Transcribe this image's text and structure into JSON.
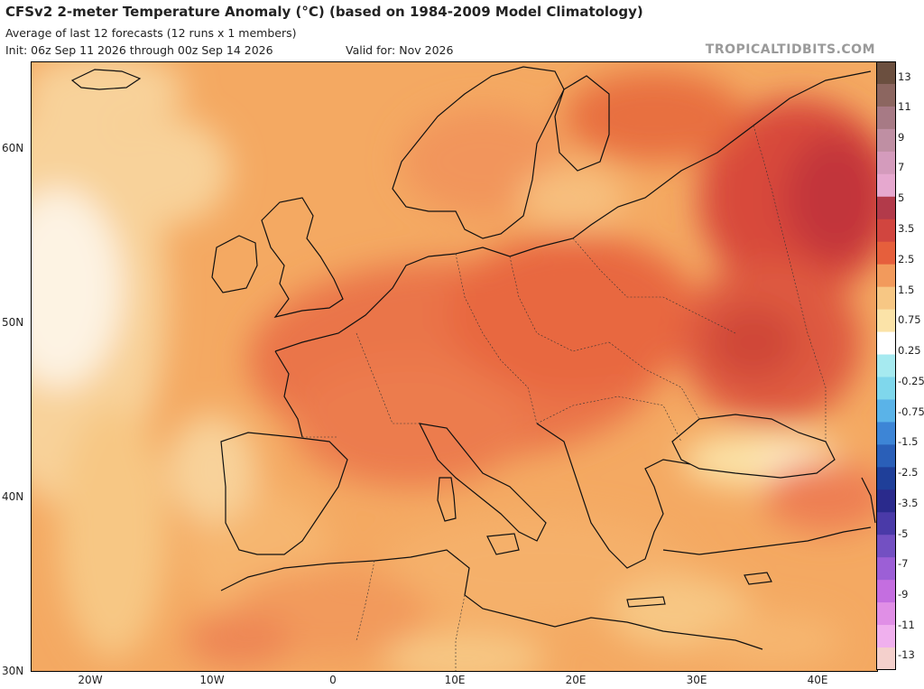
{
  "header": {
    "title": "CFSv2 2-meter Temperature Anomaly (°C) (based on 1984-2009 Model Climatology)",
    "subtitle": "Average of last 12 forecasts (12 runs x 1 members)",
    "init": "Init: 06z Sep 11 2026 through 00z Sep 14 2026",
    "valid": "Valid for: Nov 2026",
    "brand": "TROPICALTIDBITS.COM"
  },
  "map": {
    "lat_labels": [
      "60N",
      "50N",
      "40N",
      "30N"
    ],
    "lon_labels": [
      "20W",
      "10W",
      "0",
      "10E",
      "20E",
      "30E",
      "40E"
    ]
  },
  "colorbar": {
    "labels": [
      "13",
      "11",
      "9",
      "7",
      "5",
      "3.5",
      "2.5",
      "1.5",
      "0.75",
      "0.25",
      "-0.25",
      "-0.75",
      "-1.5",
      "-2.5",
      "-3.5",
      "-5",
      "-7",
      "-9",
      "-11",
      "-13"
    ],
    "colors": [
      "#6b4f3f",
      "#8c6660",
      "#a77a85",
      "#bf8fa3",
      "#d49bbc",
      "#e6a8cf",
      "#b23a4a",
      "#d1453f",
      "#e65f3c",
      "#f29a5c",
      "#f7c784",
      "#fbe3a8",
      "#ffffff",
      "#a6eaf0",
      "#7fd7ec",
      "#5ab3e8",
      "#3d85d6",
      "#2a5fb8",
      "#1f3f99",
      "#2a2a8c",
      "#4a3aa8",
      "#7350c2",
      "#9c5fd6",
      "#c46ee0",
      "#e08fe6",
      "#f0b0ee",
      "#f4d0cc"
    ]
  }
}
